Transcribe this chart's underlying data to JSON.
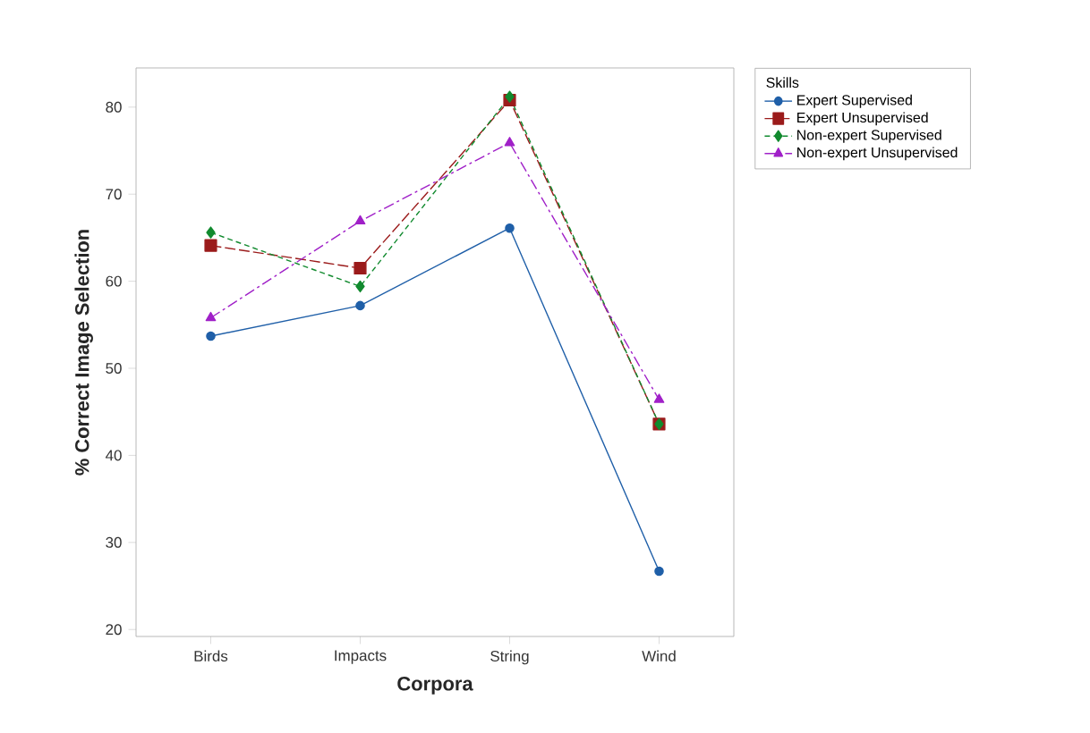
{
  "chart_data": {
    "type": "line",
    "xlabel": "Corpora",
    "ylabel": "% Correct Image Selection",
    "legend_title": "Skills",
    "categories": [
      "Birds",
      "Impacts",
      "String",
      "Wind"
    ],
    "series": [
      {
        "name": "Expert Supervised",
        "color": "#1f5fa8",
        "marker": "circle",
        "line_style": "solid",
        "values": [
          53.7,
          57.2,
          66.1,
          26.7
        ]
      },
      {
        "name": "Expert Unsupervised",
        "color": "#9b1b1b",
        "marker": "square",
        "line_style": "longdashed",
        "values": [
          64.1,
          61.5,
          80.8,
          43.6
        ]
      },
      {
        "name": "Non-expert Supervised",
        "color": "#118a2e",
        "marker": "diamond",
        "line_style": "dashed",
        "values": [
          65.6,
          59.4,
          81.2,
          43.6
        ]
      },
      {
        "name": "Non-expert Unsupervised",
        "color": "#a020c8",
        "marker": "triangle",
        "line_style": "dashdot",
        "values": [
          55.8,
          66.9,
          75.9,
          46.4
        ]
      }
    ],
    "ylim": [
      19.2,
      84.5
    ],
    "yticks": [
      20,
      30,
      40,
      50,
      60,
      70,
      80
    ],
    "grid": false,
    "legend": "right"
  }
}
